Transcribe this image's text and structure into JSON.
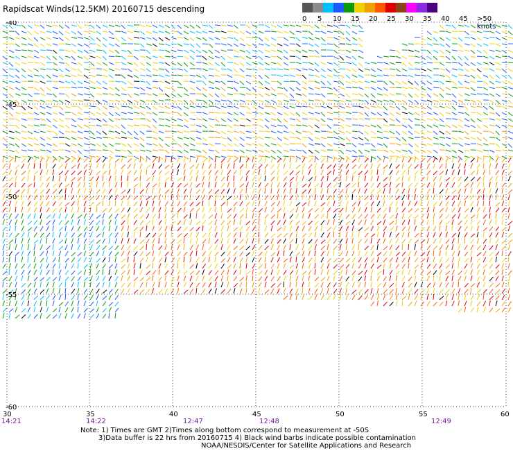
{
  "title": "Rapidscat Winds(12.5KM) 20160715 descending",
  "legend": {
    "labels": [
      "0",
      "5",
      "10",
      "15",
      "20",
      "25",
      "30",
      "35",
      "40",
      "45",
      ">50 knots"
    ],
    "colors": [
      "#555555",
      "#8a8a8a",
      "#00bfff",
      "#1e5aff",
      "#0a9a0a",
      "#f0d000",
      "#f0a000",
      "#ff5a00",
      "#e00000",
      "#8b4513",
      "#ff00ff",
      "#8a2be2",
      "#4b0082"
    ]
  },
  "map": {
    "x_ticks": [
      "30",
      "35",
      "40",
      "45",
      "50",
      "55",
      "60"
    ],
    "y_labels": [
      "-40",
      "-45",
      "-50",
      "-55",
      "-60"
    ],
    "times": [
      "14:21",
      "14:22",
      "12:47",
      "12:48",
      "12:49"
    ]
  },
  "notes": {
    "line1": "Note: 1) Times are GMT 2)Times along bottom correspond to measurement at -50S",
    "line2": "3)Data buffer is 22 hrs from 20160715 4) Black wind barbs indicate possible contamination",
    "line3": "NOAA/NESDIS/Center for Satellite Applications and Research"
  }
}
